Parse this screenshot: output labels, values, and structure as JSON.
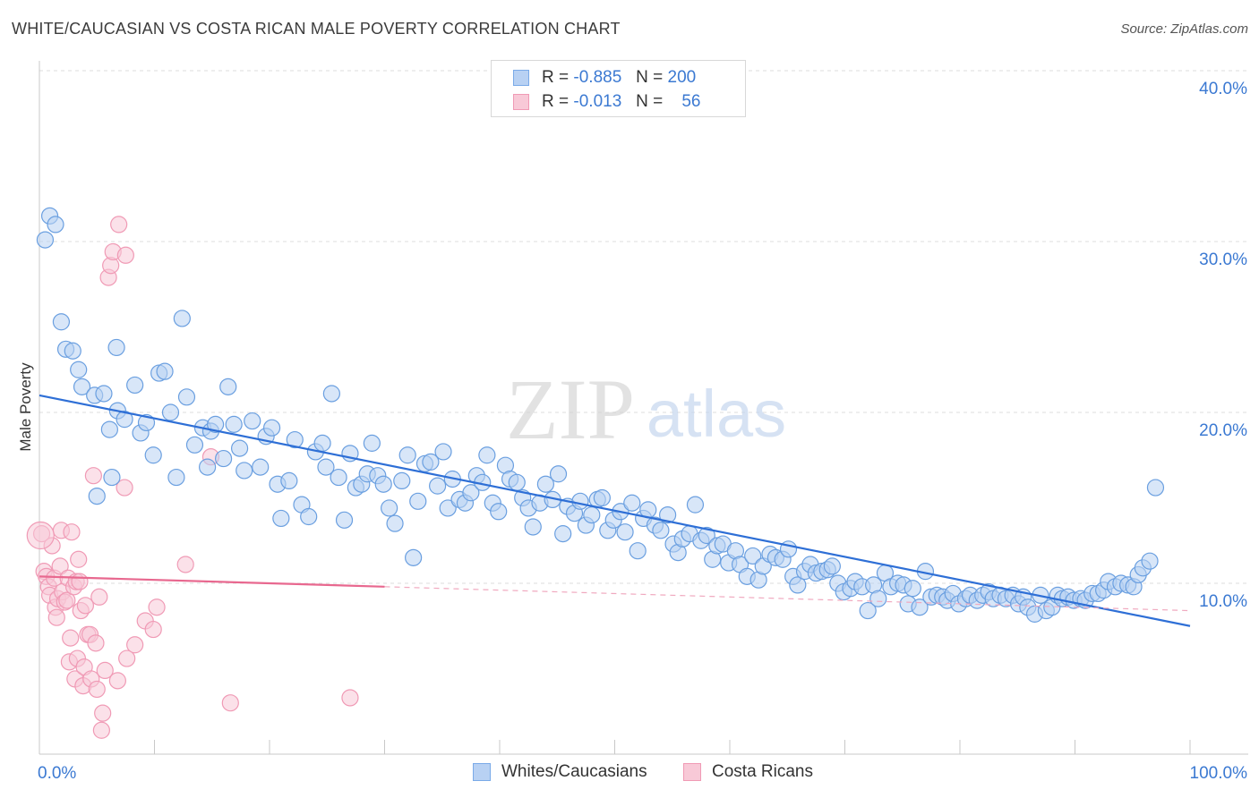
{
  "title": "WHITE/CAUCASIAN VS COSTA RICAN MALE POVERTY CORRELATION CHART",
  "source": "Source: ZipAtlas.com",
  "watermark": {
    "zip": "ZIP",
    "atlas": "atlas"
  },
  "legend": [
    {
      "r_label": "R =",
      "r_value": "-0.885",
      "n_label": "N =",
      "n_value": "200",
      "color": "#7aaae8",
      "fill": "#b8d1f3"
    },
    {
      "r_label": "R =",
      "r_value": "-0.013",
      "n_label": "N =",
      "n_value": "56",
      "color": "#f09ab5",
      "fill": "#f8c9d7"
    }
  ],
  "bottom_legend": [
    "Whites/Caucasians",
    "Costa Ricans"
  ],
  "chart_data": {
    "type": "scatter",
    "title": "WHITE/CAUCASIAN VS COSTA RICAN MALE POVERTY CORRELATION CHART",
    "xlabel": "",
    "ylabel": "Male Poverty",
    "xlim": [
      0,
      100
    ],
    "ylim": [
      0,
      40
    ],
    "x_tick_labels": [
      "0.0%",
      "100.0%"
    ],
    "y_tick_labels": [
      "10.0%",
      "20.0%",
      "30.0%",
      "40.0%"
    ],
    "y_ticks": [
      10,
      20,
      30,
      40
    ],
    "grid": true,
    "legend_position": "top-center",
    "series": [
      {
        "name": "Whites/Caucasians",
        "color": "#6a9fe0",
        "fill": "#b8d1f3",
        "trend": {
          "x": [
            0,
            100
          ],
          "y": [
            21.0,
            7.5
          ],
          "style": "solid",
          "color": "#2e6fd6"
        },
        "points": [
          [
            0.5,
            30.1
          ],
          [
            0.9,
            31.5
          ],
          [
            1.4,
            31.0
          ],
          [
            1.9,
            25.3
          ],
          [
            2.3,
            23.7
          ],
          [
            2.9,
            23.6
          ],
          [
            3.4,
            22.5
          ],
          [
            3.7,
            21.5
          ],
          [
            4.8,
            21.0
          ],
          [
            5.6,
            21.1
          ],
          [
            6.1,
            19.0
          ],
          [
            5.0,
            15.1
          ],
          [
            6.3,
            16.2
          ],
          [
            6.8,
            20.1
          ],
          [
            7.4,
            19.6
          ],
          [
            6.7,
            23.8
          ],
          [
            8.3,
            21.6
          ],
          [
            8.8,
            18.8
          ],
          [
            9.3,
            19.4
          ],
          [
            9.9,
            17.5
          ],
          [
            10.4,
            22.3
          ],
          [
            10.9,
            22.4
          ],
          [
            11.4,
            20.0
          ],
          [
            11.9,
            16.2
          ],
          [
            12.4,
            25.5
          ],
          [
            12.8,
            20.9
          ],
          [
            13.5,
            18.1
          ],
          [
            14.2,
            19.1
          ],
          [
            14.6,
            16.8
          ],
          [
            14.9,
            18.9
          ],
          [
            15.3,
            19.3
          ],
          [
            16.0,
            17.3
          ],
          [
            16.4,
            21.5
          ],
          [
            16.9,
            19.3
          ],
          [
            17.4,
            17.9
          ],
          [
            17.8,
            16.6
          ],
          [
            18.5,
            19.5
          ],
          [
            19.2,
            16.8
          ],
          [
            19.7,
            18.6
          ],
          [
            20.2,
            19.1
          ],
          [
            20.7,
            15.8
          ],
          [
            21.0,
            13.8
          ],
          [
            21.7,
            16.0
          ],
          [
            22.2,
            18.4
          ],
          [
            22.8,
            14.6
          ],
          [
            23.4,
            13.9
          ],
          [
            24.0,
            17.7
          ],
          [
            24.6,
            18.2
          ],
          [
            24.9,
            16.8
          ],
          [
            25.4,
            21.1
          ],
          [
            26.0,
            16.2
          ],
          [
            26.5,
            13.7
          ],
          [
            27.0,
            17.6
          ],
          [
            27.5,
            15.6
          ],
          [
            28.0,
            15.8
          ],
          [
            28.5,
            16.4
          ],
          [
            28.9,
            18.2
          ],
          [
            29.4,
            16.3
          ],
          [
            29.9,
            15.8
          ],
          [
            30.4,
            14.4
          ],
          [
            30.9,
            13.5
          ],
          [
            31.5,
            16.0
          ],
          [
            32.0,
            17.5
          ],
          [
            32.5,
            11.5
          ],
          [
            32.9,
            14.8
          ],
          [
            33.5,
            17.0
          ],
          [
            34.0,
            17.1
          ],
          [
            34.6,
            15.7
          ],
          [
            35.1,
            17.7
          ],
          [
            35.5,
            14.4
          ],
          [
            35.9,
            16.1
          ],
          [
            36.5,
            14.9
          ],
          [
            37.0,
            14.7
          ],
          [
            37.5,
            15.3
          ],
          [
            38.0,
            16.3
          ],
          [
            38.5,
            15.9
          ],
          [
            38.9,
            17.5
          ],
          [
            39.4,
            14.7
          ],
          [
            39.9,
            14.2
          ],
          [
            40.5,
            16.9
          ],
          [
            40.9,
            16.1
          ],
          [
            41.5,
            15.9
          ],
          [
            42.0,
            15.0
          ],
          [
            42.5,
            14.4
          ],
          [
            42.9,
            13.3
          ],
          [
            43.5,
            14.7
          ],
          [
            44.0,
            15.8
          ],
          [
            44.6,
            14.9
          ],
          [
            45.1,
            16.4
          ],
          [
            45.5,
            12.9
          ],
          [
            45.9,
            14.5
          ],
          [
            46.5,
            14.1
          ],
          [
            47.0,
            14.8
          ],
          [
            47.5,
            13.4
          ],
          [
            48.0,
            14.0
          ],
          [
            48.5,
            14.9
          ],
          [
            48.9,
            15.0
          ],
          [
            49.4,
            13.1
          ],
          [
            49.9,
            13.7
          ],
          [
            50.5,
            14.2
          ],
          [
            50.9,
            13.0
          ],
          [
            51.5,
            14.7
          ],
          [
            52.0,
            11.9
          ],
          [
            52.5,
            13.8
          ],
          [
            52.9,
            14.3
          ],
          [
            53.5,
            13.4
          ],
          [
            54.0,
            13.1
          ],
          [
            54.6,
            14.0
          ],
          [
            55.1,
            12.3
          ],
          [
            55.5,
            11.8
          ],
          [
            55.9,
            12.6
          ],
          [
            56.5,
            12.9
          ],
          [
            57.0,
            14.6
          ],
          [
            57.5,
            12.5
          ],
          [
            58.0,
            12.8
          ],
          [
            58.5,
            11.4
          ],
          [
            58.9,
            12.2
          ],
          [
            59.4,
            12.3
          ],
          [
            59.9,
            11.2
          ],
          [
            60.5,
            11.9
          ],
          [
            60.9,
            11.1
          ],
          [
            61.5,
            10.4
          ],
          [
            62.0,
            11.6
          ],
          [
            62.5,
            10.2
          ],
          [
            62.9,
            11.0
          ],
          [
            63.5,
            11.7
          ],
          [
            64.0,
            11.5
          ],
          [
            64.6,
            11.4
          ],
          [
            65.1,
            12.0
          ],
          [
            65.5,
            10.4
          ],
          [
            65.9,
            9.9
          ],
          [
            66.5,
            10.7
          ],
          [
            67.0,
            11.1
          ],
          [
            67.5,
            10.6
          ],
          [
            68.0,
            10.7
          ],
          [
            68.5,
            10.8
          ],
          [
            68.9,
            11.0
          ],
          [
            69.4,
            10.0
          ],
          [
            69.9,
            9.5
          ],
          [
            70.5,
            9.7
          ],
          [
            70.9,
            10.1
          ],
          [
            71.5,
            9.8
          ],
          [
            72.0,
            8.4
          ],
          [
            72.5,
            9.9
          ],
          [
            72.9,
            9.1
          ],
          [
            73.5,
            10.6
          ],
          [
            74.0,
            9.8
          ],
          [
            74.6,
            10.0
          ],
          [
            75.1,
            9.9
          ],
          [
            75.5,
            8.8
          ],
          [
            75.9,
            9.7
          ],
          [
            76.5,
            8.6
          ],
          [
            77.0,
            10.7
          ],
          [
            77.5,
            9.2
          ],
          [
            78.0,
            9.3
          ],
          [
            78.5,
            9.2
          ],
          [
            78.9,
            9.0
          ],
          [
            79.4,
            9.4
          ],
          [
            79.9,
            8.8
          ],
          [
            80.5,
            9.1
          ],
          [
            80.9,
            9.3
          ],
          [
            81.5,
            9.0
          ],
          [
            82.0,
            9.3
          ],
          [
            82.5,
            9.5
          ],
          [
            82.9,
            9.1
          ],
          [
            83.5,
            9.3
          ],
          [
            84.0,
            9.1
          ],
          [
            84.6,
            9.3
          ],
          [
            85.1,
            8.8
          ],
          [
            85.5,
            9.2
          ],
          [
            85.9,
            8.6
          ],
          [
            86.5,
            8.2
          ],
          [
            87.0,
            9.3
          ],
          [
            87.5,
            8.4
          ],
          [
            88.0,
            8.6
          ],
          [
            88.5,
            9.3
          ],
          [
            88.9,
            9.1
          ],
          [
            89.4,
            9.2
          ],
          [
            89.9,
            9.0
          ],
          [
            90.5,
            9.1
          ],
          [
            90.9,
            9.0
          ],
          [
            91.5,
            9.4
          ],
          [
            92.0,
            9.4
          ],
          [
            92.5,
            9.6
          ],
          [
            92.9,
            10.1
          ],
          [
            93.5,
            9.8
          ],
          [
            94.0,
            10.0
          ],
          [
            94.6,
            9.9
          ],
          [
            95.1,
            9.8
          ],
          [
            95.5,
            10.5
          ],
          [
            95.9,
            10.9
          ],
          [
            96.5,
            11.3
          ],
          [
            97.0,
            15.6
          ]
        ]
      },
      {
        "name": "Costa Ricans",
        "color": "#f09ab5",
        "fill": "#f8c9d7",
        "trend": {
          "x": [
            0,
            30
          ],
          "y": [
            10.4,
            9.8
          ],
          "style": "solid",
          "dashed_extension": {
            "x": [
              30,
              100
            ],
            "y": [
              9.8,
              8.4
            ]
          },
          "color": "#e8688f"
        },
        "points": [
          [
            0.2,
            12.9
          ],
          [
            0.4,
            10.7
          ],
          [
            0.6,
            10.4
          ],
          [
            0.8,
            9.8
          ],
          [
            0.9,
            9.3
          ],
          [
            1.1,
            12.2
          ],
          [
            1.3,
            10.3
          ],
          [
            1.4,
            8.6
          ],
          [
            1.5,
            8.0
          ],
          [
            1.6,
            9.1
          ],
          [
            1.8,
            11.0
          ],
          [
            1.9,
            13.1
          ],
          [
            2.0,
            9.5
          ],
          [
            2.2,
            8.9
          ],
          [
            2.4,
            9.0
          ],
          [
            2.5,
            10.3
          ],
          [
            2.6,
            5.4
          ],
          [
            2.7,
            6.8
          ],
          [
            2.8,
            13.0
          ],
          [
            3.0,
            9.8
          ],
          [
            3.1,
            4.4
          ],
          [
            3.2,
            10.1
          ],
          [
            3.3,
            5.6
          ],
          [
            3.4,
            11.4
          ],
          [
            3.5,
            10.1
          ],
          [
            3.6,
            8.4
          ],
          [
            3.8,
            4.0
          ],
          [
            3.9,
            5.1
          ],
          [
            4.0,
            8.7
          ],
          [
            4.2,
            7.0
          ],
          [
            4.4,
            7.0
          ],
          [
            4.5,
            4.4
          ],
          [
            4.7,
            16.3
          ],
          [
            4.9,
            6.5
          ],
          [
            5.0,
            3.8
          ],
          [
            5.2,
            9.2
          ],
          [
            5.4,
            1.4
          ],
          [
            5.5,
            2.4
          ],
          [
            5.7,
            4.9
          ],
          [
            6.0,
            27.9
          ],
          [
            6.2,
            28.6
          ],
          [
            6.4,
            29.4
          ],
          [
            6.8,
            4.3
          ],
          [
            6.9,
            31.0
          ],
          [
            7.5,
            29.2
          ],
          [
            7.4,
            15.6
          ],
          [
            7.6,
            5.6
          ],
          [
            8.3,
            6.4
          ],
          [
            9.2,
            7.8
          ],
          [
            9.9,
            7.3
          ],
          [
            10.2,
            8.6
          ],
          [
            12.7,
            11.1
          ],
          [
            14.9,
            17.4
          ],
          [
            16.6,
            3.0
          ],
          [
            27.0,
            3.3
          ],
          [
            0.1,
            12.8
          ]
        ]
      }
    ]
  }
}
